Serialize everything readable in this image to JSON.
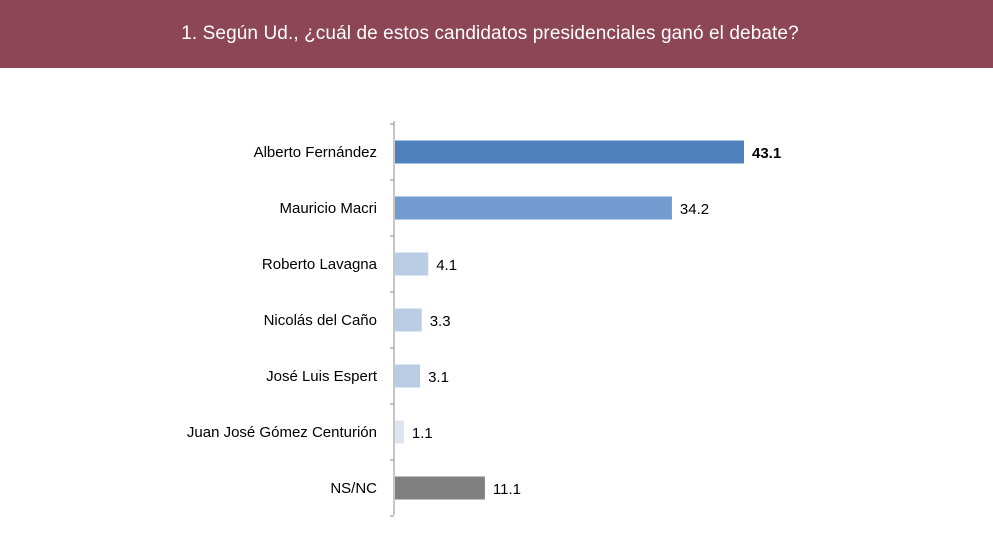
{
  "header": {
    "title": "1. Según Ud., ¿cuál de estos candidatos presidenciales ganó el debate?"
  },
  "chart_data": {
    "type": "bar",
    "orientation": "horizontal",
    "categories": [
      "Alberto Fernández",
      "Mauricio Macri",
      "Roberto Lavagna",
      "Nicolás del Caño",
      "José Luis Espert",
      "Juan José Gómez Centurión",
      "NS/NC"
    ],
    "values": [
      43.1,
      34.2,
      4.1,
      3.3,
      3.1,
      1.1,
      11.1
    ],
    "value_labels": [
      "43.1",
      "34.2",
      "4.1",
      "3.3",
      "3.1",
      "1.1",
      "11.1"
    ],
    "colors": [
      "#4f81bd",
      "#729bd0",
      "#b9cde5",
      "#b9cde5",
      "#b9cde5",
      "#dce6f2",
      "#808080"
    ],
    "bold_labels": [
      true,
      false,
      false,
      false,
      false,
      false,
      false
    ],
    "xlim": [
      0,
      45
    ],
    "grid": false,
    "legend": "none"
  }
}
